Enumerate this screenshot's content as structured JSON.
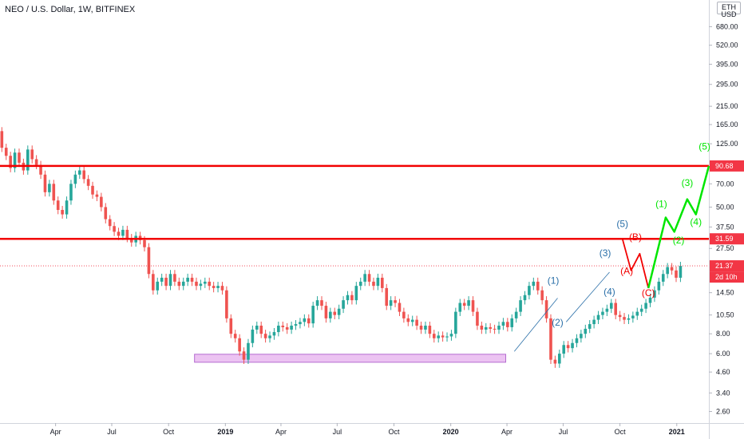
{
  "header": {
    "symbol_title": "NEO / U.S. Dollar, 1W, BITFINEX",
    "currency_lines": [
      "ETH",
      "USD"
    ]
  },
  "colors": {
    "up": "#26a69a",
    "down": "#ef5350",
    "level_line": "#f20000",
    "tag_red": "#f23645",
    "box_fill": "#e9b8f0",
    "box_stroke": "#b46cd0",
    "blue_wave": "#2a6fa8",
    "red_wave": "#f20000",
    "green_wave": "#00e600"
  },
  "chart_data": {
    "type": "candlestick",
    "title": "NEO / U.S. Dollar, 1W, BITFINEX",
    "y_scale": "log",
    "ylim": [
      2.2,
      1000
    ],
    "xlim": [
      "2018-01-01",
      "2021-02-22"
    ],
    "y_ticks": [
      "680.00",
      "520.00",
      "395.00",
      "295.00",
      "215.00",
      "165.00",
      "125.00",
      "70.00",
      "50.00",
      "37.50",
      "27.50",
      "14.50",
      "10.50",
      "8.00",
      "6.00",
      "4.60",
      "3.40",
      "2.60"
    ],
    "x_ticks": [
      {
        "label": "Apr",
        "date": "2018-04-01",
        "bold": false
      },
      {
        "label": "Jul",
        "date": "2018-07-01",
        "bold": false
      },
      {
        "label": "Oct",
        "date": "2018-10-01",
        "bold": false
      },
      {
        "label": "2019",
        "date": "2019-01-01",
        "bold": true
      },
      {
        "label": "Apr",
        "date": "2019-04-01",
        "bold": false
      },
      {
        "label": "Jul",
        "date": "2019-07-01",
        "bold": false
      },
      {
        "label": "Oct",
        "date": "2019-10-01",
        "bold": false
      },
      {
        "label": "2020",
        "date": "2020-01-01",
        "bold": true
      },
      {
        "label": "Apr",
        "date": "2020-04-01",
        "bold": false
      },
      {
        "label": "Jul",
        "date": "2020-07-01",
        "bold": false
      },
      {
        "label": "Oct",
        "date": "2020-10-01",
        "bold": false
      },
      {
        "label": "2021",
        "date": "2021-01-01",
        "bold": true
      }
    ],
    "closes": [
      118,
      105,
      88,
      110,
      95,
      85,
      115,
      100,
      92,
      80,
      62,
      70,
      55,
      48,
      45,
      55,
      70,
      80,
      85,
      75,
      68,
      60,
      58,
      50,
      42,
      38,
      35,
      33,
      36,
      32,
      30,
      33,
      31,
      28,
      19,
      15,
      17,
      18,
      16,
      19,
      17,
      16,
      17,
      18,
      17,
      16,
      16.5,
      17,
      16,
      15.5,
      16,
      15,
      10,
      8,
      7.5,
      6.2,
      5.5,
      7,
      8.5,
      9,
      8,
      7.5,
      7.8,
      8.2,
      9,
      8.8,
      8.5,
      9,
      9.2,
      9.5,
      10,
      9.3,
      12,
      13,
      12,
      10,
      11,
      10.5,
      11.5,
      13,
      14,
      13,
      16,
      17,
      19,
      17,
      16,
      18,
      15.5,
      12,
      13,
      12.5,
      11,
      10,
      9.5,
      9.8,
      9,
      8.5,
      9,
      8,
      7.5,
      7.8,
      7.6,
      7.7,
      8,
      11,
      12.5,
      12,
      13,
      11,
      9,
      8.5,
      8.8,
      8.6,
      8.5,
      9,
      9.5,
      8.8,
      10,
      11,
      13,
      14,
      16,
      17,
      15,
      13,
      10,
      5.5,
      5.2,
      6,
      6.8,
      6.5,
      7,
      7.5,
      8,
      8.6,
      9.2,
      9.8,
      10.5,
      11,
      11.5,
      12.5,
      10.5,
      10.2,
      9.8,
      10,
      10.4,
      11,
      11.5,
      12.5,
      13.5,
      15,
      17,
      19,
      21,
      20,
      18,
      21.37
    ],
    "series": [
      {
        "name": "",
        "type": "candles",
        "values": "closes"
      }
    ],
    "levels": [
      {
        "price": 90.68,
        "label": "90.68"
      },
      {
        "price": 31.59,
        "label": "31.59"
      }
    ],
    "last_price": {
      "price": 21.37,
      "label": "21.37",
      "countdown": "2d 10h"
    },
    "support_zone": {
      "x_start": "2018-11-12",
      "x_end": "2020-03-30",
      "y_low": 5.3,
      "y_high": 5.95
    },
    "wave_lines": [
      {
        "name": "blue_trend_1",
        "points": [
          [
            "2020-04-13",
            6.2
          ],
          [
            "2020-06-22",
            13.4
          ]
        ]
      },
      {
        "name": "blue_trend_2",
        "points": [
          [
            "2020-07-06",
            9.5
          ],
          [
            "2020-09-14",
            19.5
          ]
        ]
      },
      {
        "name": "red_path",
        "points": [
          [
            "2020-10-05",
            31.59
          ],
          [
            "2020-10-19",
            20.0
          ],
          [
            "2020-11-02",
            25.5
          ],
          [
            "2020-11-16",
            15.5
          ]
        ]
      },
      {
        "name": "green_path",
        "points": [
          [
            "2020-11-16",
            15.5
          ],
          [
            "2020-12-14",
            43
          ],
          [
            "2020-12-28",
            35
          ],
          [
            "2021-01-18",
            56
          ],
          [
            "2021-02-01",
            45
          ],
          [
            "2021-02-22",
            90.68
          ]
        ]
      }
    ],
    "wave_labels": [
      {
        "text": "(1)",
        "color": "blue",
        "x": "2020-06-15",
        "y": 16.5
      },
      {
        "text": "(2)",
        "color": "blue",
        "x": "2020-06-22",
        "y": 9.0
      },
      {
        "text": "(3)",
        "color": "blue",
        "x": "2020-09-07",
        "y": 24.5
      },
      {
        "text": "(4)",
        "color": "blue",
        "x": "2020-09-14",
        "y": 14.0
      },
      {
        "text": "(5)",
        "color": "blue",
        "x": "2020-10-05",
        "y": 37.5
      },
      {
        "text": "(A)",
        "color": "red",
        "x": "2020-10-12",
        "y": 19.0
      },
      {
        "text": "(B)",
        "color": "red",
        "x": "2020-10-26",
        "y": 31.0
      },
      {
        "text": "(C)",
        "color": "red",
        "x": "2020-11-16",
        "y": 13.8
      },
      {
        "text": "(1)",
        "color": "green",
        "x": "2020-12-07",
        "y": 50.0
      },
      {
        "text": "(2)",
        "color": "green",
        "x": "2021-01-04",
        "y": 29.5
      },
      {
        "text": "(3)",
        "color": "green",
        "x": "2021-01-18",
        "y": 68.0
      },
      {
        "text": "(4)",
        "color": "green",
        "x": "2021-02-01",
        "y": 38.5
      },
      {
        "text": "(5)",
        "color": "green",
        "x": "2021-02-15",
        "y": 115.0
      }
    ]
  }
}
